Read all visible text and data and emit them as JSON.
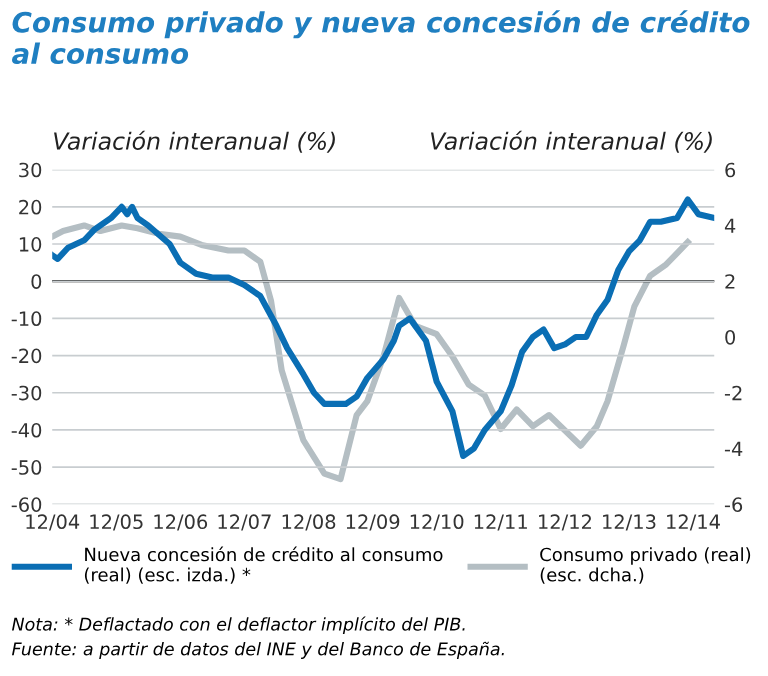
{
  "chart_data": {
    "type": "line",
    "title": "Consumo privado y nueva concesión de crédito\nal consumo",
    "ylabel": "Variación interanual (%)",
    "y2label": "Variación interanual (%)",
    "xlim": [
      "2004-12",
      "2015-04"
    ],
    "xticks": [
      {
        "value": "2004-12",
        "label": "12/04"
      },
      {
        "value": "2005-12",
        "label": "12/05"
      },
      {
        "value": "2006-12",
        "label": "12/06"
      },
      {
        "value": "2007-12",
        "label": "12/07"
      },
      {
        "value": "2008-12",
        "label": "12/08"
      },
      {
        "value": "2009-12",
        "label": "12/09"
      },
      {
        "value": "2010-12",
        "label": "12/10"
      },
      {
        "value": "2011-12",
        "label": "12/11"
      },
      {
        "value": "2012-12",
        "label": "12/12"
      },
      {
        "value": "2013-12",
        "label": "12/13"
      },
      {
        "value": "2014-12",
        "label": "12/14"
      }
    ],
    "ylim": [
      -60,
      30
    ],
    "yticks": [
      -60,
      -50,
      -40,
      -30,
      -20,
      -10,
      0,
      10,
      20,
      30
    ],
    "y2lim": [
      -6,
      6
    ],
    "y2ticks": [
      -6,
      -4,
      -2,
      0,
      2,
      4,
      6
    ],
    "grid": "y",
    "legend": "bottom",
    "line_style": "solid",
    "ref_lines": [
      {
        "axis": "y",
        "value": 0,
        "color": "#000000"
      }
    ],
    "series": [
      {
        "name": "Nueva concesión de crédito al consumo\n(real) (esc. izda.) *",
        "color": "#0a6eb4",
        "x": [
          "2004-12",
          "2005-01",
          "2005-03",
          "2005-06",
          "2005-08",
          "2005-11",
          "2006-01",
          "2006-02",
          "2006-03",
          "2006-04",
          "2006-06",
          "2006-10",
          "2006-12",
          "2007-03",
          "2007-06",
          "2007-09",
          "2007-12",
          "2008-03",
          "2008-06",
          "2008-08",
          "2008-11",
          "2009-01",
          "2009-03",
          "2009-05",
          "2009-07",
          "2009-09",
          "2009-11",
          "2010-02",
          "2010-04",
          "2010-05",
          "2010-07",
          "2010-10",
          "2010-12",
          "2011-03",
          "2011-05",
          "2011-07",
          "2011-09",
          "2011-12",
          "2012-02",
          "2012-04",
          "2012-06",
          "2012-08",
          "2012-10",
          "2012-12",
          "2013-02",
          "2013-04",
          "2013-06",
          "2013-08",
          "2013-10",
          "2013-12",
          "2014-02",
          "2014-04",
          "2014-06",
          "2014-09",
          "2014-11",
          "2015-01",
          "2015-04"
        ],
        "values": [
          7,
          6,
          9,
          11,
          14,
          17,
          20,
          18,
          20,
          17,
          15,
          10,
          5,
          2,
          1,
          1,
          -1,
          -4,
          -12,
          -18,
          -25,
          -30,
          -33,
          -33,
          -33,
          -31,
          -26,
          -21,
          -16,
          -12,
          -10,
          -16,
          -27,
          -35,
          -47,
          -45,
          -40,
          -35,
          -28,
          -19,
          -15,
          -13,
          -18,
          -17,
          -15,
          -15,
          -9,
          -5,
          3,
          8,
          11,
          16,
          16,
          17,
          22,
          18,
          17
        ]
      },
      {
        "name": "Consumo privado (real)\n(esc. dcha.)",
        "color": "#b4bec3",
        "axis": "y2",
        "x": [
          "2004-12",
          "2005-02",
          "2005-06",
          "2005-09",
          "2006-01",
          "2006-04",
          "2006-08",
          "2006-12",
          "2007-04",
          "2007-09",
          "2007-12",
          "2008-03",
          "2008-05",
          "2008-07",
          "2008-11",
          "2009-03",
          "2009-06",
          "2009-09",
          "2009-11",
          "2010-02",
          "2010-05",
          "2010-08",
          "2010-12",
          "2011-03",
          "2011-06",
          "2011-09",
          "2011-12",
          "2012-03",
          "2012-06",
          "2012-09",
          "2013-03",
          "2013-06",
          "2013-08",
          "2013-11",
          "2014-01",
          "2014-04",
          "2014-07",
          "2014-11"
        ],
        "values": [
          3.6,
          3.8,
          4.0,
          3.8,
          4.0,
          3.9,
          3.7,
          3.6,
          3.3,
          3.1,
          3.1,
          2.7,
          1.3,
          -1.2,
          -3.7,
          -4.9,
          -5.1,
          -2.8,
          -2.3,
          -0.7,
          1.4,
          0.4,
          0.1,
          -0.7,
          -1.7,
          -2.1,
          -3.3,
          -2.6,
          -3.2,
          -2.8,
          -3.9,
          -3.2,
          -2.3,
          -0.3,
          1.1,
          2.2,
          2.6,
          3.4
        ]
      }
    ],
    "annotations": [
      "Nota: * Deflactado con el deflactor implícito del PIB.",
      "Fuente: a partir de datos del INE y del Banco de España."
    ]
  }
}
